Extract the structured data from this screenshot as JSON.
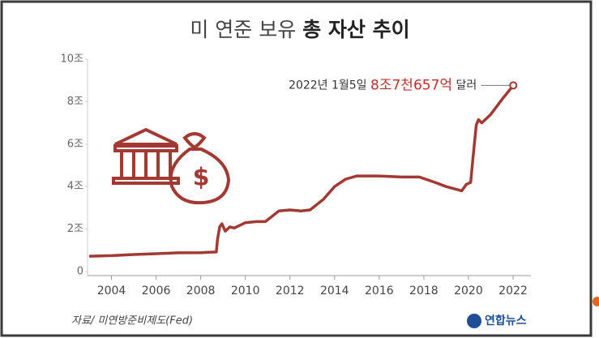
{
  "chart_data": {
    "type": "line",
    "title": "미 연준 보유",
    "title_emphasis": "총 자산 추이",
    "x": [
      2003.0,
      2004,
      2005,
      2006,
      2007,
      2008.0,
      2008.7,
      2008.75,
      2008.85,
      2008.95,
      2009.1,
      2009.3,
      2009.5,
      2009.8,
      2010,
      2010.5,
      2010.9,
      2011.2,
      2011.5,
      2012,
      2012.5,
      2012.9,
      2013.5,
      2014,
      2014.5,
      2015,
      2016,
      2017,
      2017.8,
      2018.5,
      2019,
      2019.7,
      2019.9,
      2020.1,
      2020.2,
      2020.35,
      2020.45,
      2020.6,
      2021,
      2021.5,
      2022.01
    ],
    "values": [
      0.72,
      0.75,
      0.8,
      0.84,
      0.88,
      0.89,
      0.92,
      1.5,
      2.1,
      2.25,
      1.9,
      2.1,
      2.05,
      2.2,
      2.3,
      2.35,
      2.35,
      2.6,
      2.85,
      2.9,
      2.85,
      2.9,
      3.4,
      4.0,
      4.35,
      4.5,
      4.5,
      4.45,
      4.45,
      4.2,
      4.0,
      3.8,
      4.1,
      4.2,
      5.3,
      6.9,
      7.15,
      7.0,
      7.4,
      8.1,
      8.7657
    ],
    "color": "#a23a33",
    "xlim": [
      2003,
      2022.8
    ],
    "ylim": [
      0,
      10
    ],
    "xticks": [
      2004,
      2006,
      2008,
      2010,
      2012,
      2014,
      2016,
      2018,
      2020,
      2022
    ],
    "yticks": [
      0,
      {
        "value": 2,
        "label": "2조"
      },
      {
        "value": 4,
        "label": "4조"
      },
      {
        "value": 6,
        "label": "6조"
      },
      {
        "value": 8,
        "label": "8조"
      },
      {
        "value": 10,
        "label": "10조"
      }
    ],
    "annotation": {
      "x": 2022.01,
      "value": 8.7657,
      "prefix": "2022년 1월5일",
      "label": "8조7천657억",
      "suffix": "달러"
    },
    "source": "자료/ 미연방준비제도(Fed)",
    "logo": "연합뉴스"
  }
}
